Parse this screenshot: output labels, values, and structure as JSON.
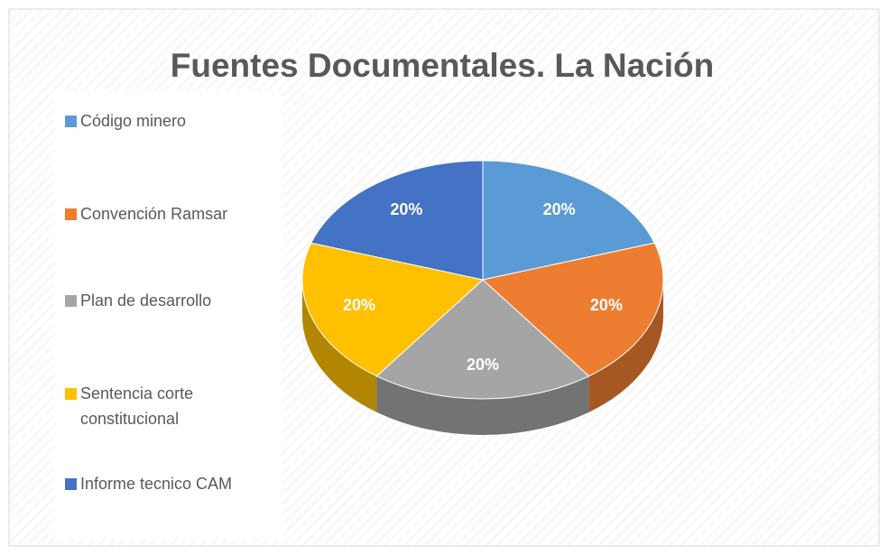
{
  "chart_data": {
    "type": "pie",
    "title": "Fuentes Documentales. La Nación",
    "categories": [
      "Código minero",
      "Convención Ramsar",
      "Plan de desarrollo",
      "Sentencia corte constitucional",
      "Informe tecnico CAM"
    ],
    "values": [
      20,
      20,
      20,
      20,
      20
    ],
    "value_labels": [
      "20%",
      "20%",
      "20%",
      "20%",
      "20%"
    ],
    "colors": [
      "#5b9bd5",
      "#ed7d31",
      "#a5a5a5",
      "#ffc000",
      "#4472c4"
    ],
    "legend": "left"
  }
}
